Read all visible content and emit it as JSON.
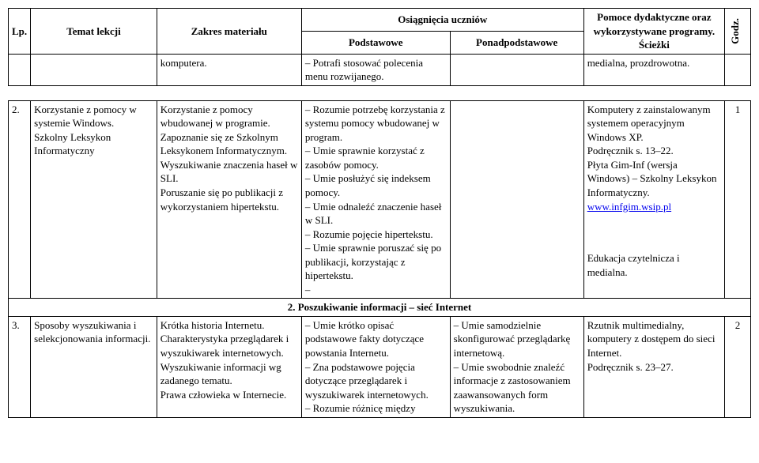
{
  "header": {
    "lp": "Lp.",
    "temat": "Temat lekcji",
    "zakres": "Zakres materiału",
    "osiagniecia": "Osiągnięcia uczniów",
    "podstawowe": "Podstawowe",
    "ponadpodstawowe": "Ponadpodstawowe",
    "pomoce": "Pomoce dydaktyczne oraz wykorzystywane programy. Ścieżki",
    "godz": "Godz."
  },
  "row_partial": {
    "zakres": "komputera.",
    "podst": "– Potrafi stosować polecenia menu rozwijanego.",
    "pomoce": "medialna, prozdrowotna."
  },
  "row2": {
    "lp": "2.",
    "temat": "Korzystanie z pomocy w systemie Windows.\nSzkolny Leksykon Informatyczny",
    "zakres": "Korzystanie z pomocy wbudowanej w programie. Zapoznanie się ze Szkolnym Leksykonem Informatycznym.\nWyszukiwanie znaczenia haseł w SLI.\nPoruszanie się po publikacji z wykorzystaniem hipertekstu.",
    "podst": "– Rozumie potrzebę korzystania z systemu pomocy wbudowanej w program.\n– Umie sprawnie korzystać z zasobów pomocy.\n– Umie posłużyć się indeksem pomocy.\n– Umie odnaleźć znaczenie haseł w SLI.\n– Rozumie pojęcie hipertekstu.\n– Umie sprawnie poruszać się po publikacji, korzystając z hipertekstu.\n–",
    "ponad": "",
    "pomoce_a": "Komputery z zainstalowanym systemem operacyjnym Windows XP.\nPodręcznik s. 13–22.\nPłyta Gim-Inf (wersja Windows) – Szkolny Leksykon Informatyczny.",
    "pomoce_link": "www.infgim.wsip.pl",
    "pomoce_b": "Edukacja czytelnicza i medialna.",
    "godz": "1"
  },
  "section": {
    "title": "2. Poszukiwanie informacji – sieć Internet"
  },
  "row3": {
    "lp": "3.",
    "temat": "Sposoby wyszukiwania i selekcjonowania informacji.",
    "zakres": "Krótka historia Internetu. Charakterystyka przeglądarek i wyszukiwarek internetowych. Wyszukiwanie informacji wg zadanego tematu.\nPrawa człowieka w Internecie.",
    "podst": "– Umie krótko opisać podstawowe fakty dotyczące powstania Internetu.\n– Zna podstawowe pojęcia dotyczące przeglądarek i wyszukiwarek internetowych.\n– Rozumie różnicę między",
    "ponad": "– Umie samodzielnie skonfigurować przeglądarkę internetową.\n– Umie swobodnie znaleźć informacje z zastosowaniem zaawansowanych form wyszukiwania.",
    "pomoce": "Rzutnik multimedialny, komputery z dostępem do sieci Internet.\nPodręcznik s. 23–27.",
    "godz": "2"
  }
}
